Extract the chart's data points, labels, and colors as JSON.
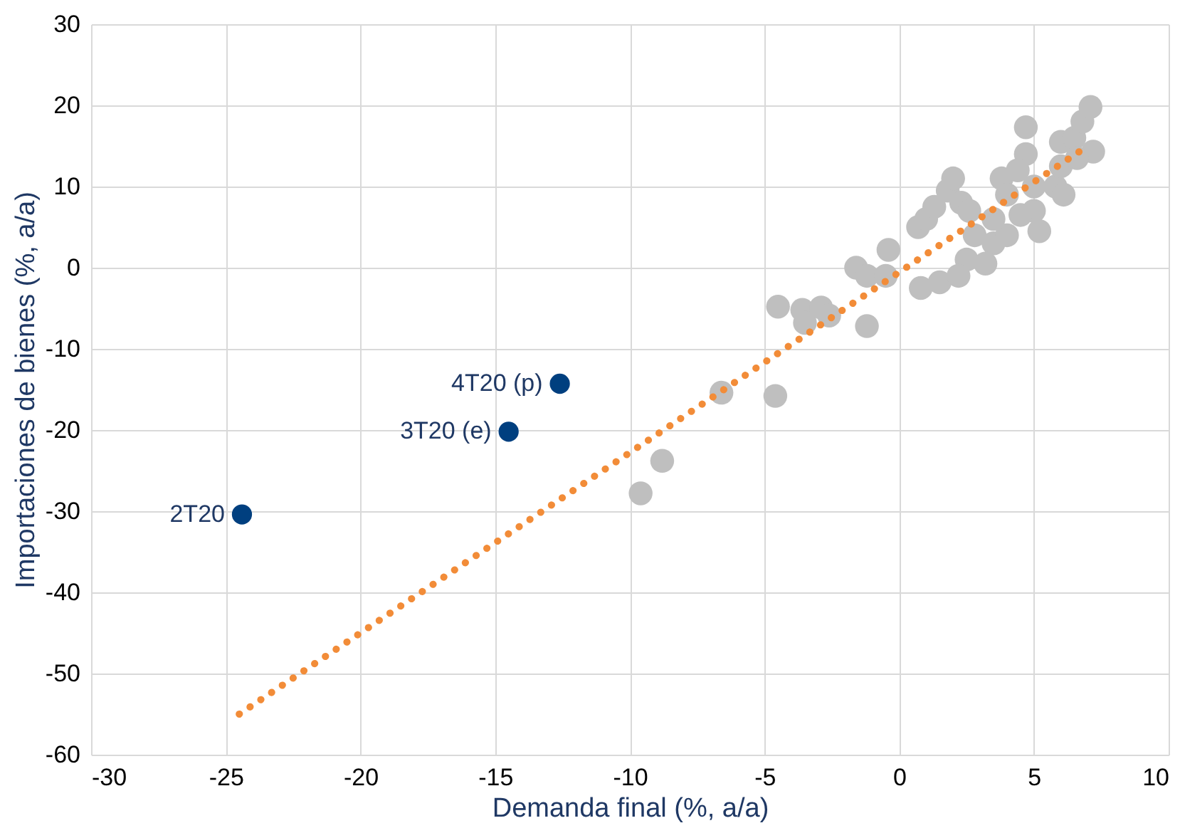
{
  "chart_data": {
    "type": "scatter",
    "xlabel": "Demanda final (%, a/a)",
    "ylabel": "Importaciones de bienes (%, a/a)",
    "xlim": [
      -30,
      10
    ],
    "xticks": [
      -30,
      -25,
      -20,
      -15,
      -10,
      -5,
      0,
      5,
      10
    ],
    "ylim": [
      -60,
      30
    ],
    "yticks": [
      -60,
      -50,
      -40,
      -30,
      -20,
      -10,
      0,
      10,
      20,
      30
    ],
    "grid": true,
    "marker": "circle",
    "series": [
      {
        "color": "#bfbfbf",
        "x": [
          -9.6,
          -8.8,
          -6.6,
          -4.6,
          -4.5,
          -3.6,
          -3.5,
          -2.9,
          -2.6,
          -1.2,
          -1.6,
          -1.2,
          -0.5,
          -0.4,
          0.7,
          1.0,
          1.3,
          1.8,
          2.3,
          2.0,
          2.6,
          0.8,
          1.5,
          2.5,
          2.2,
          3.5,
          3.2,
          4.0,
          3.8,
          4.7,
          4.7,
          4.4,
          5.0,
          5.2,
          5.0,
          3.5,
          4.0,
          2.8,
          5.8,
          6.0,
          6.0,
          6.5,
          6.8,
          7.1,
          7.2,
          6.1,
          6.6,
          4.5
        ],
        "values": [
          -27.8,
          -23.8,
          -15.4,
          -15.8,
          -4.8,
          -5.2,
          -6.8,
          -4.9,
          -5.9,
          -7.2,
          0.0,
          -1.0,
          -1.0,
          2.2,
          5.0,
          6.0,
          7.5,
          9.5,
          8.0,
          11.0,
          7.0,
          -2.5,
          -1.8,
          1.0,
          -1.0,
          3.0,
          0.5,
          4.0,
          11.0,
          17.3,
          14.0,
          12.0,
          10.0,
          4.5,
          7.0,
          6.0,
          9.0,
          4.0,
          10.0,
          12.5,
          15.5,
          16.0,
          18.0,
          19.8,
          14.3,
          9.0,
          13.5,
          6.5
        ]
      },
      {
        "color": "#003f7f",
        "x": [
          -24.4,
          -14.5,
          -12.6
        ],
        "values": [
          -30.4,
          -20.2,
          -14.3
        ]
      },
      {
        "type": "line",
        "color": "#f28c38",
        "line_style": "dotted",
        "marker": "none",
        "x": [
          -24.5,
          7.0
        ],
        "values": [
          -55.0,
          15.0
        ]
      }
    ],
    "annotations": [
      {
        "text": "2T20",
        "x": -24.4,
        "y": -30.4
      },
      {
        "text": "3T20  (e)",
        "x": -14.5,
        "y": -20.2
      },
      {
        "text": "4T20  (p)",
        "x": -12.6,
        "y": -14.3
      }
    ]
  }
}
